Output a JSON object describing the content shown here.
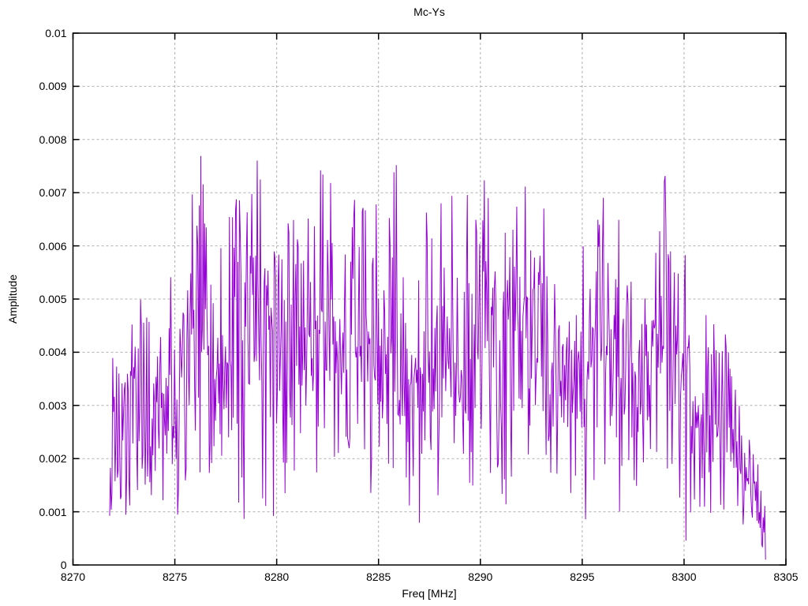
{
  "page": {
    "background_color": "#ffffff",
    "text_color": "#000000"
  },
  "chart_data": {
    "type": "line",
    "title": "Mc-Ys",
    "xlabel": "Freq [MHz]",
    "ylabel": "Amplitude",
    "xlim": [
      8270,
      8305
    ],
    "ylim": [
      0,
      0.01
    ],
    "xtick_values": [
      8270,
      8275,
      8280,
      8285,
      8290,
      8295,
      8300,
      8305
    ],
    "xtick_labels": [
      "8270",
      "8275",
      "8280",
      "8285",
      "8290",
      "8295",
      "8300",
      "8305"
    ],
    "ytick_values": [
      0,
      0.001,
      0.002,
      0.003,
      0.004,
      0.005,
      0.006,
      0.007,
      0.008,
      0.009,
      0.01
    ],
    "ytick_labels": [
      "0",
      "0.001",
      "0.002",
      "0.003",
      "0.004",
      "0.005",
      "0.006",
      "0.007",
      "0.008",
      "0.009",
      "0.01"
    ],
    "grid": {
      "show": true,
      "style": "dashed",
      "color": "#b0b0b0"
    },
    "legend": "none",
    "border_color": "#000000",
    "series": [
      {
        "name": "Mc-Ys",
        "color": "#9400D3",
        "line_width": 1,
        "description": "Dense noise-like amplitude spectrum; values fluctuate rapidly between ~0.0005 and the peak envelope below; overall mean ~0.004; signal occupies 8271.8-8304.0 MHz, near zero outside.",
        "noise_spec": {
          "generator": "seeded-lcg-triangular",
          "seed": 42,
          "n_points": 850,
          "x_start": 8271.8,
          "x_end": 8304.0,
          "floor_fraction": 0.06,
          "end_value": 0.0001,
          "envelope_keypoints": [
            [
              8271.8,
              0.0042
            ],
            [
              8272.4,
              0.004
            ],
            [
              8273.0,
              0.0065
            ],
            [
              8273.6,
              0.0052
            ],
            [
              8274.4,
              0.005
            ],
            [
              8275.0,
              0.0057
            ],
            [
              8275.7,
              0.007
            ],
            [
              8276.1,
              0.0092
            ],
            [
              8276.7,
              0.007
            ],
            [
              8277.4,
              0.0068
            ],
            [
              8278.0,
              0.0082
            ],
            [
              8278.5,
              0.0092
            ],
            [
              8279.0,
              0.0085
            ],
            [
              8279.6,
              0.0078
            ],
            [
              8280.1,
              0.0085
            ],
            [
              8280.8,
              0.007
            ],
            [
              8281.3,
              0.0084
            ],
            [
              8282.0,
              0.0076
            ],
            [
              8282.6,
              0.0082
            ],
            [
              8283.2,
              0.007
            ],
            [
              8283.9,
              0.0086
            ],
            [
              8284.6,
              0.0073
            ],
            [
              8285.2,
              0.0076
            ],
            [
              8285.7,
              0.0082
            ],
            [
              8286.4,
              0.0064
            ],
            [
              8287.1,
              0.0067
            ],
            [
              8287.8,
              0.0073
            ],
            [
              8288.4,
              0.0078
            ],
            [
              8289.0,
              0.007
            ],
            [
              8289.7,
              0.0083
            ],
            [
              8290.2,
              0.0084
            ],
            [
              8290.9,
              0.0066
            ],
            [
              8291.5,
              0.0077
            ],
            [
              8292.1,
              0.0082
            ],
            [
              8292.7,
              0.0077
            ],
            [
              8293.5,
              0.0069
            ],
            [
              8294.2,
              0.0072
            ],
            [
              8294.9,
              0.006
            ],
            [
              8295.6,
              0.0085
            ],
            [
              8296.3,
              0.0073
            ],
            [
              8297.1,
              0.0062
            ],
            [
              8297.8,
              0.0066
            ],
            [
              8298.4,
              0.0075
            ],
            [
              8299.0,
              0.0084
            ],
            [
              8299.7,
              0.0069
            ],
            [
              8300.4,
              0.0057
            ],
            [
              8301.0,
              0.006
            ],
            [
              8301.7,
              0.0053
            ],
            [
              8302.3,
              0.0046
            ],
            [
              8302.9,
              0.0028
            ],
            [
              8303.5,
              0.0027
            ],
            [
              8304.0,
              0.0012
            ]
          ]
        }
      }
    ]
  }
}
